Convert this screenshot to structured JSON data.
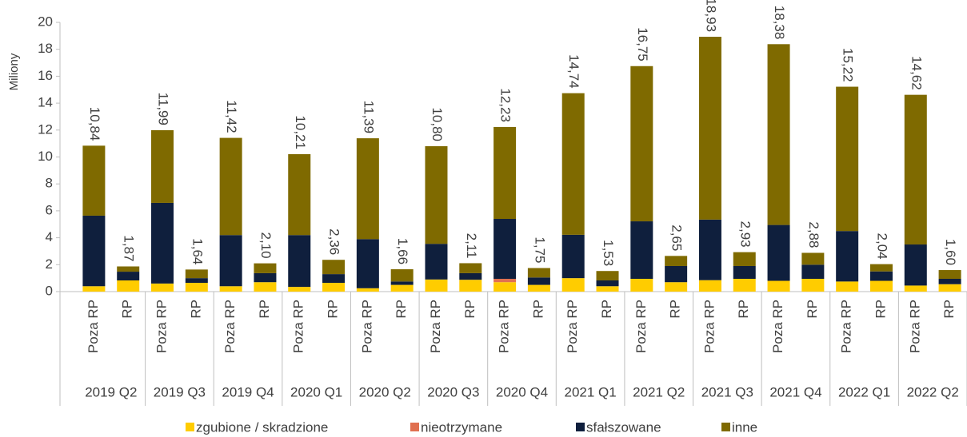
{
  "chart_data": {
    "type": "stacked_bar",
    "y_label": "Miliony",
    "categories": [
      "Poza RP",
      "RP",
      "Poza RP",
      "RP",
      "Poza RP",
      "RP",
      "Poza RP",
      "RP",
      "Poza RP",
      "RP",
      "Poza RP",
      "RP",
      "Poza RP",
      "RP",
      "Poza RP",
      "RP",
      "Poza RP",
      "RP",
      "Poza RP",
      "RP",
      "Poza RP",
      "RP",
      "Poza RP",
      "RP",
      "Poza RP",
      "RP"
    ],
    "groups": [
      "2019 Q2",
      "2019 Q3",
      "2019 Q4",
      "2020 Q1",
      "2020 Q2",
      "2020 Q3",
      "2020 Q4",
      "2021 Q1",
      "2021 Q2",
      "2021 Q3",
      "2021 Q4",
      "2022 Q1",
      "2022 Q2"
    ],
    "series": [
      {
        "name": "zgubione / skradzione",
        "color": "#ffcc00",
        "values": [
          0.4,
          0.83,
          0.6,
          0.65,
          0.4,
          0.7,
          0.35,
          0.65,
          0.25,
          0.5,
          0.9,
          0.88,
          0.7,
          0.5,
          1.0,
          0.4,
          0.95,
          0.7,
          0.85,
          0.95,
          0.8,
          0.95,
          0.75,
          0.8,
          0.45,
          0.55
        ]
      },
      {
        "name": "nieotrzymane",
        "color": "#e07050",
        "values": [
          0,
          0,
          0,
          0,
          0,
          0,
          0,
          0,
          0,
          0,
          0,
          0,
          0.25,
          0,
          0,
          0,
          0,
          0,
          0,
          0,
          0,
          0,
          0,
          0,
          0,
          0
        ]
      },
      {
        "name": "sfałszowane",
        "color": "#0f1f3d",
        "values": [
          5.24,
          0.65,
          5.99,
          0.35,
          3.8,
          0.67,
          3.85,
          0.65,
          3.65,
          0.25,
          2.65,
          0.49,
          4.45,
          0.55,
          3.22,
          0.43,
          4.27,
          1.2,
          4.5,
          0.95,
          4.15,
          1.05,
          3.75,
          0.7,
          3.05,
          0.4
        ]
      },
      {
        "name": "inne",
        "color": "#7f6a00",
        "values": [
          5.2,
          0.39,
          5.4,
          0.64,
          7.22,
          0.73,
          6.01,
          1.06,
          7.49,
          0.91,
          7.25,
          0.74,
          6.83,
          0.7,
          10.52,
          0.7,
          11.53,
          0.75,
          13.58,
          1.03,
          13.43,
          0.88,
          10.72,
          0.54,
          11.12,
          0.65
        ]
      }
    ],
    "totals": [
      10.84,
      1.87,
      11.99,
      1.64,
      11.42,
      2.1,
      10.21,
      2.36,
      11.39,
      1.66,
      10.8,
      2.11,
      12.23,
      1.75,
      14.74,
      1.53,
      16.75,
      2.65,
      18.93,
      2.93,
      18.38,
      2.88,
      15.22,
      2.04,
      14.62,
      1.6
    ],
    "total_labels": [
      "10,84",
      "1,87",
      "11,99",
      "1,64",
      "11,42",
      "2,10",
      "10,21",
      "2,36",
      "11,39",
      "1,66",
      "10,80",
      "2,11",
      "12,23",
      "1,75",
      "14,74",
      "1,53",
      "16,75",
      "2,65",
      "18,93",
      "2,93",
      "18,38",
      "2,88",
      "15,22",
      "2,04",
      "14,62",
      "1,60"
    ],
    "ylim": [
      0,
      20
    ],
    "yticks": [
      0,
      2,
      4,
      6,
      8,
      10,
      12,
      14,
      16,
      18,
      20
    ],
    "legend": "bottom"
  }
}
